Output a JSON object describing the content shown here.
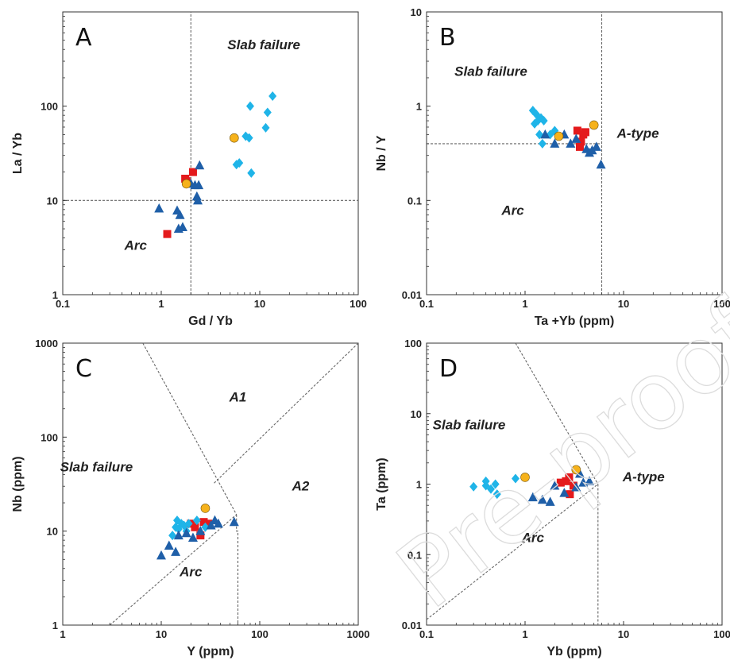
{
  "watermark": "Pre-proof",
  "colors": {
    "red_square": "#e41a1c",
    "light_blue_diamond": "#1fb4e8",
    "dark_blue_triangle": "#1f5fa8",
    "yellow_circle": "#f6b21b",
    "boundary_line": "#666666"
  },
  "chart_data": [
    {
      "panel": "A",
      "type": "scatter",
      "x_scale": "log",
      "y_scale": "log",
      "xlim": [
        0.1,
        100
      ],
      "ylim": [
        1,
        1000
      ],
      "xlabel": "Gd / Yb",
      "ylabel": "La / Yb",
      "x_ticks": [
        0.1,
        1,
        10,
        100
      ],
      "x_tick_labels": [
        "0.1",
        "1",
        "10",
        "100"
      ],
      "y_ticks": [
        1,
        10,
        100
      ],
      "y_tick_labels": [
        "1",
        "10",
        "100"
      ],
      "fields": [
        {
          "label": "Slab failure",
          "x": 11,
          "y": 400
        },
        {
          "label": "Arc",
          "x": 0.55,
          "y": 3
        }
      ],
      "boundaries": [
        {
          "points": [
            [
              2,
              1
            ],
            [
              2,
              1000
            ]
          ]
        },
        {
          "points": [
            [
              0.1,
              10
            ],
            [
              100,
              10
            ]
          ]
        }
      ],
      "series": [
        {
          "marker": "square",
          "color": "#e41a1c",
          "points": [
            [
              1.15,
              4.4
            ],
            [
              1.75,
              17
            ],
            [
              1.8,
              16
            ],
            [
              2.1,
              20
            ]
          ]
        },
        {
          "marker": "diamond",
          "color": "#1fb4e8",
          "points": [
            [
              5.8,
              24
            ],
            [
              6.2,
              25
            ],
            [
              7.2,
              48
            ],
            [
              7.8,
              46
            ],
            [
              8,
              100
            ],
            [
              8.2,
              19.5
            ],
            [
              11.5,
              59
            ],
            [
              12,
              86
            ],
            [
              13.5,
              128
            ]
          ]
        },
        {
          "marker": "triangle",
          "color": "#1f5fa8",
          "points": [
            [
              0.95,
              8.2
            ],
            [
              1.45,
              7.8
            ],
            [
              1.5,
              5
            ],
            [
              1.55,
              7
            ],
            [
              1.65,
              5.2
            ],
            [
              2,
              15
            ],
            [
              2.2,
              14.5
            ],
            [
              2.3,
              11
            ],
            [
              2.4,
              14.5
            ],
            [
              2.35,
              10
            ],
            [
              2.45,
              23.5
            ]
          ]
        },
        {
          "marker": "circle",
          "color": "#f6b21b",
          "points": [
            [
              1.8,
              15
            ],
            [
              5.5,
              46
            ]
          ]
        }
      ]
    },
    {
      "panel": "B",
      "type": "scatter",
      "x_scale": "log",
      "y_scale": "log",
      "xlim": [
        0.1,
        100
      ],
      "ylim": [
        0.01,
        10
      ],
      "xlabel": "Ta +Yb (ppm)",
      "ylabel": "Nb / Y",
      "x_ticks": [
        0.1,
        1,
        10,
        100
      ],
      "x_tick_labels": [
        "0.1",
        "1",
        "10",
        "100"
      ],
      "y_ticks": [
        0.01,
        0.1,
        1,
        10
      ],
      "y_tick_labels": [
        "0.01",
        "0.1",
        "1",
        "10"
      ],
      "fields": [
        {
          "label": "Slab failure",
          "x": 0.45,
          "y": 2.1
        },
        {
          "label": "A-type",
          "x": 14,
          "y": 0.46
        },
        {
          "label": "Arc",
          "x": 0.75,
          "y": 0.07
        }
      ],
      "boundaries": [
        {
          "points": [
            [
              0.1,
              0.4
            ],
            [
              6,
              0.4
            ]
          ]
        },
        {
          "points": [
            [
              6,
              0.01
            ],
            [
              6,
              10
            ]
          ]
        }
      ],
      "series": [
        {
          "marker": "square",
          "color": "#e41a1c",
          "points": [
            [
              3.4,
              0.55
            ],
            [
              3.6,
              0.37
            ],
            [
              3.7,
              0.42
            ],
            [
              3.9,
              0.5
            ],
            [
              4.1,
              0.53
            ]
          ]
        },
        {
          "marker": "diamond",
          "color": "#1fb4e8",
          "points": [
            [
              1.2,
              0.9
            ],
            [
              1.25,
              0.65
            ],
            [
              1.3,
              0.82
            ],
            [
              1.35,
              0.7
            ],
            [
              1.4,
              0.5
            ],
            [
              1.45,
              0.75
            ],
            [
              1.5,
              0.4
            ],
            [
              1.55,
              0.7
            ],
            [
              1.8,
              0.5
            ],
            [
              2,
              0.55
            ]
          ]
        },
        {
          "marker": "triangle",
          "color": "#1f5fa8",
          "points": [
            [
              1.6,
              0.5
            ],
            [
              2,
              0.4
            ],
            [
              2.5,
              0.5
            ],
            [
              2.9,
              0.4
            ],
            [
              3.3,
              0.45
            ],
            [
              4.2,
              0.35
            ],
            [
              4.5,
              0.32
            ],
            [
              4.8,
              0.34
            ],
            [
              5.3,
              0.37
            ],
            [
              5.9,
              0.24
            ]
          ]
        },
        {
          "marker": "circle",
          "color": "#f6b21b",
          "points": [
            [
              2.2,
              0.48
            ],
            [
              5,
              0.63
            ]
          ]
        }
      ]
    },
    {
      "panel": "C",
      "type": "scatter",
      "x_scale": "log",
      "y_scale": "log",
      "xlim": [
        1,
        1000
      ],
      "ylim": [
        1,
        1000
      ],
      "xlabel": "Y (ppm)",
      "ylabel": "Nb (ppm)",
      "x_ticks": [
        1,
        10,
        100,
        1000
      ],
      "x_tick_labels": [
        "1",
        "10",
        "100",
        "1000"
      ],
      "y_ticks": [
        1,
        10,
        100,
        1000
      ],
      "y_tick_labels": [
        "1",
        "10",
        "100",
        "1000"
      ],
      "fields": [
        {
          "label": "A1",
          "x": 60,
          "y": 240
        },
        {
          "label": "A2",
          "x": 260,
          "y": 27
        },
        {
          "label": "Slab failure",
          "x": 2.2,
          "y": 43
        },
        {
          "label": "Arc",
          "x": 20,
          "y": 3.3
        }
      ],
      "boundaries": [
        {
          "points": [
            [
              6.5,
              1000
            ],
            [
              58,
              15
            ]
          ]
        },
        {
          "points": [
            [
              3,
              1
            ],
            [
              58,
              15
            ]
          ]
        },
        {
          "points": [
            [
              58,
              15
            ],
            [
              58,
              10
            ],
            [
              60,
              10
            ],
            [
              60,
              1
            ]
          ]
        },
        {
          "points": [
            [
              1000,
              1000
            ],
            [
              34,
              32
            ]
          ]
        }
      ],
      "series": [
        {
          "marker": "square",
          "color": "#e41a1c",
          "points": [
            [
              20,
              12
            ],
            [
              22,
              11
            ],
            [
              25,
              9
            ],
            [
              27,
              12.5
            ],
            [
              30,
              12
            ]
          ]
        },
        {
          "marker": "diamond",
          "color": "#1fb4e8",
          "points": [
            [
              13,
              9
            ],
            [
              14,
              11
            ],
            [
              14.5,
              13
            ],
            [
              15,
              10.5
            ],
            [
              16,
              12
            ],
            [
              17,
              11.5
            ],
            [
              18,
              10
            ],
            [
              19,
              12
            ],
            [
              23,
              13
            ],
            [
              28,
              11
            ]
          ]
        },
        {
          "marker": "triangle",
          "color": "#1f5fa8",
          "points": [
            [
              10,
              5.5
            ],
            [
              12,
              7
            ],
            [
              14,
              6
            ],
            [
              15,
              9
            ],
            [
              18,
              9.5
            ],
            [
              21,
              8.5
            ],
            [
              25,
              10
            ],
            [
              32,
              11.5
            ],
            [
              35,
              13
            ],
            [
              38,
              12
            ],
            [
              55,
              12.5
            ]
          ]
        },
        {
          "marker": "circle",
          "color": "#f6b21b",
          "points": [
            [
              28,
              17.5
            ]
          ]
        }
      ]
    },
    {
      "panel": "D",
      "type": "scatter",
      "x_scale": "log",
      "y_scale": "log",
      "xlim": [
        0.1,
        100
      ],
      "ylim": [
        0.01,
        100
      ],
      "xlabel": "Yb (ppm)",
      "ylabel": "Ta (ppm)",
      "x_ticks": [
        0.1,
        1,
        10,
        100
      ],
      "x_tick_labels": [
        "0.1",
        "1",
        "10",
        "100"
      ],
      "y_ticks": [
        0.01,
        0.1,
        1,
        10,
        100
      ],
      "y_tick_labels": [
        "0.01",
        "0.1",
        "1",
        "10",
        "100"
      ],
      "fields": [
        {
          "label": "Slab failure",
          "x": 0.27,
          "y": 6
        },
        {
          "label": "A-type",
          "x": 16,
          "y": 1.1
        },
        {
          "label": "Arc",
          "x": 1.2,
          "y": 0.15
        }
      ],
      "boundaries": [
        {
          "points": [
            [
              0.8,
              100
            ],
            [
              5.5,
              1
            ]
          ]
        },
        {
          "points": [
            [
              0.1,
              0.012
            ],
            [
              5.5,
              1
            ]
          ]
        },
        {
          "points": [
            [
              5.5,
              1
            ],
            [
              5.5,
              0.01
            ]
          ]
        }
      ],
      "series": [
        {
          "marker": "square",
          "color": "#e41a1c",
          "points": [
            [
              2.3,
              1.05
            ],
            [
              2.6,
              1.1
            ],
            [
              2.8,
              1.25
            ],
            [
              2.85,
              0.72
            ],
            [
              3.1,
              0.95
            ]
          ]
        },
        {
          "marker": "diamond",
          "color": "#1fb4e8",
          "points": [
            [
              0.3,
              0.92
            ],
            [
              0.4,
              1.1
            ],
            [
              0.4,
              0.95
            ],
            [
              0.45,
              0.85
            ],
            [
              0.5,
              1.0
            ],
            [
              0.52,
              0.72
            ],
            [
              0.8,
              1.2
            ]
          ]
        },
        {
          "marker": "triangle",
          "color": "#1f5fa8",
          "points": [
            [
              1.2,
              0.65
            ],
            [
              1.5,
              0.6
            ],
            [
              1.8,
              0.56
            ],
            [
              2,
              0.95
            ],
            [
              2.5,
              0.75
            ],
            [
              3.3,
              0.9
            ],
            [
              3.6,
              1.4
            ],
            [
              3.9,
              1.05
            ],
            [
              4.5,
              1.1
            ]
          ]
        },
        {
          "marker": "circle",
          "color": "#f6b21b",
          "points": [
            [
              1,
              1.25
            ],
            [
              3.3,
              1.6
            ]
          ]
        }
      ]
    }
  ]
}
